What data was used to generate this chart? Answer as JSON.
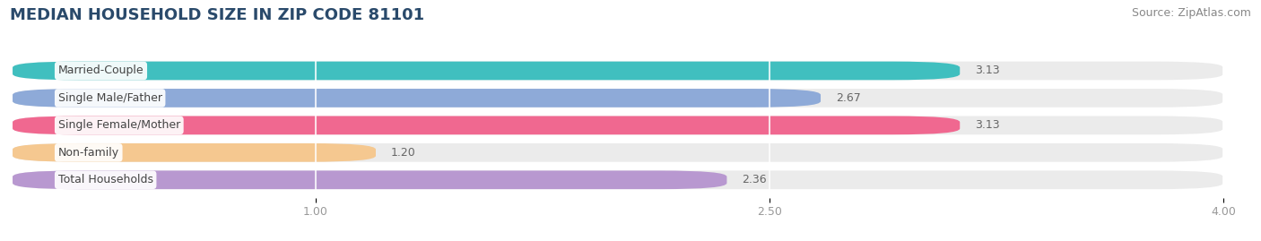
{
  "title": "MEDIAN HOUSEHOLD SIZE IN ZIP CODE 81101",
  "source": "Source: ZipAtlas.com",
  "categories": [
    "Married-Couple",
    "Single Male/Father",
    "Single Female/Mother",
    "Non-family",
    "Total Households"
  ],
  "values": [
    3.13,
    2.67,
    3.13,
    1.2,
    2.36
  ],
  "bar_colors": [
    "#40bfbf",
    "#8eaad8",
    "#f06890",
    "#f5c890",
    "#b898d0"
  ],
  "xlim": [
    0,
    4.0
  ],
  "xticks": [
    1.0,
    2.5,
    4.0
  ],
  "xticklabels": [
    "1.00",
    "2.50",
    "4.00"
  ],
  "title_fontsize": 13,
  "source_fontsize": 9,
  "label_fontsize": 9,
  "value_fontsize": 9,
  "background_color": "#ffffff",
  "bar_bg_color": "#ebebeb",
  "bar_height": 0.68,
  "bar_gap": 1.0
}
